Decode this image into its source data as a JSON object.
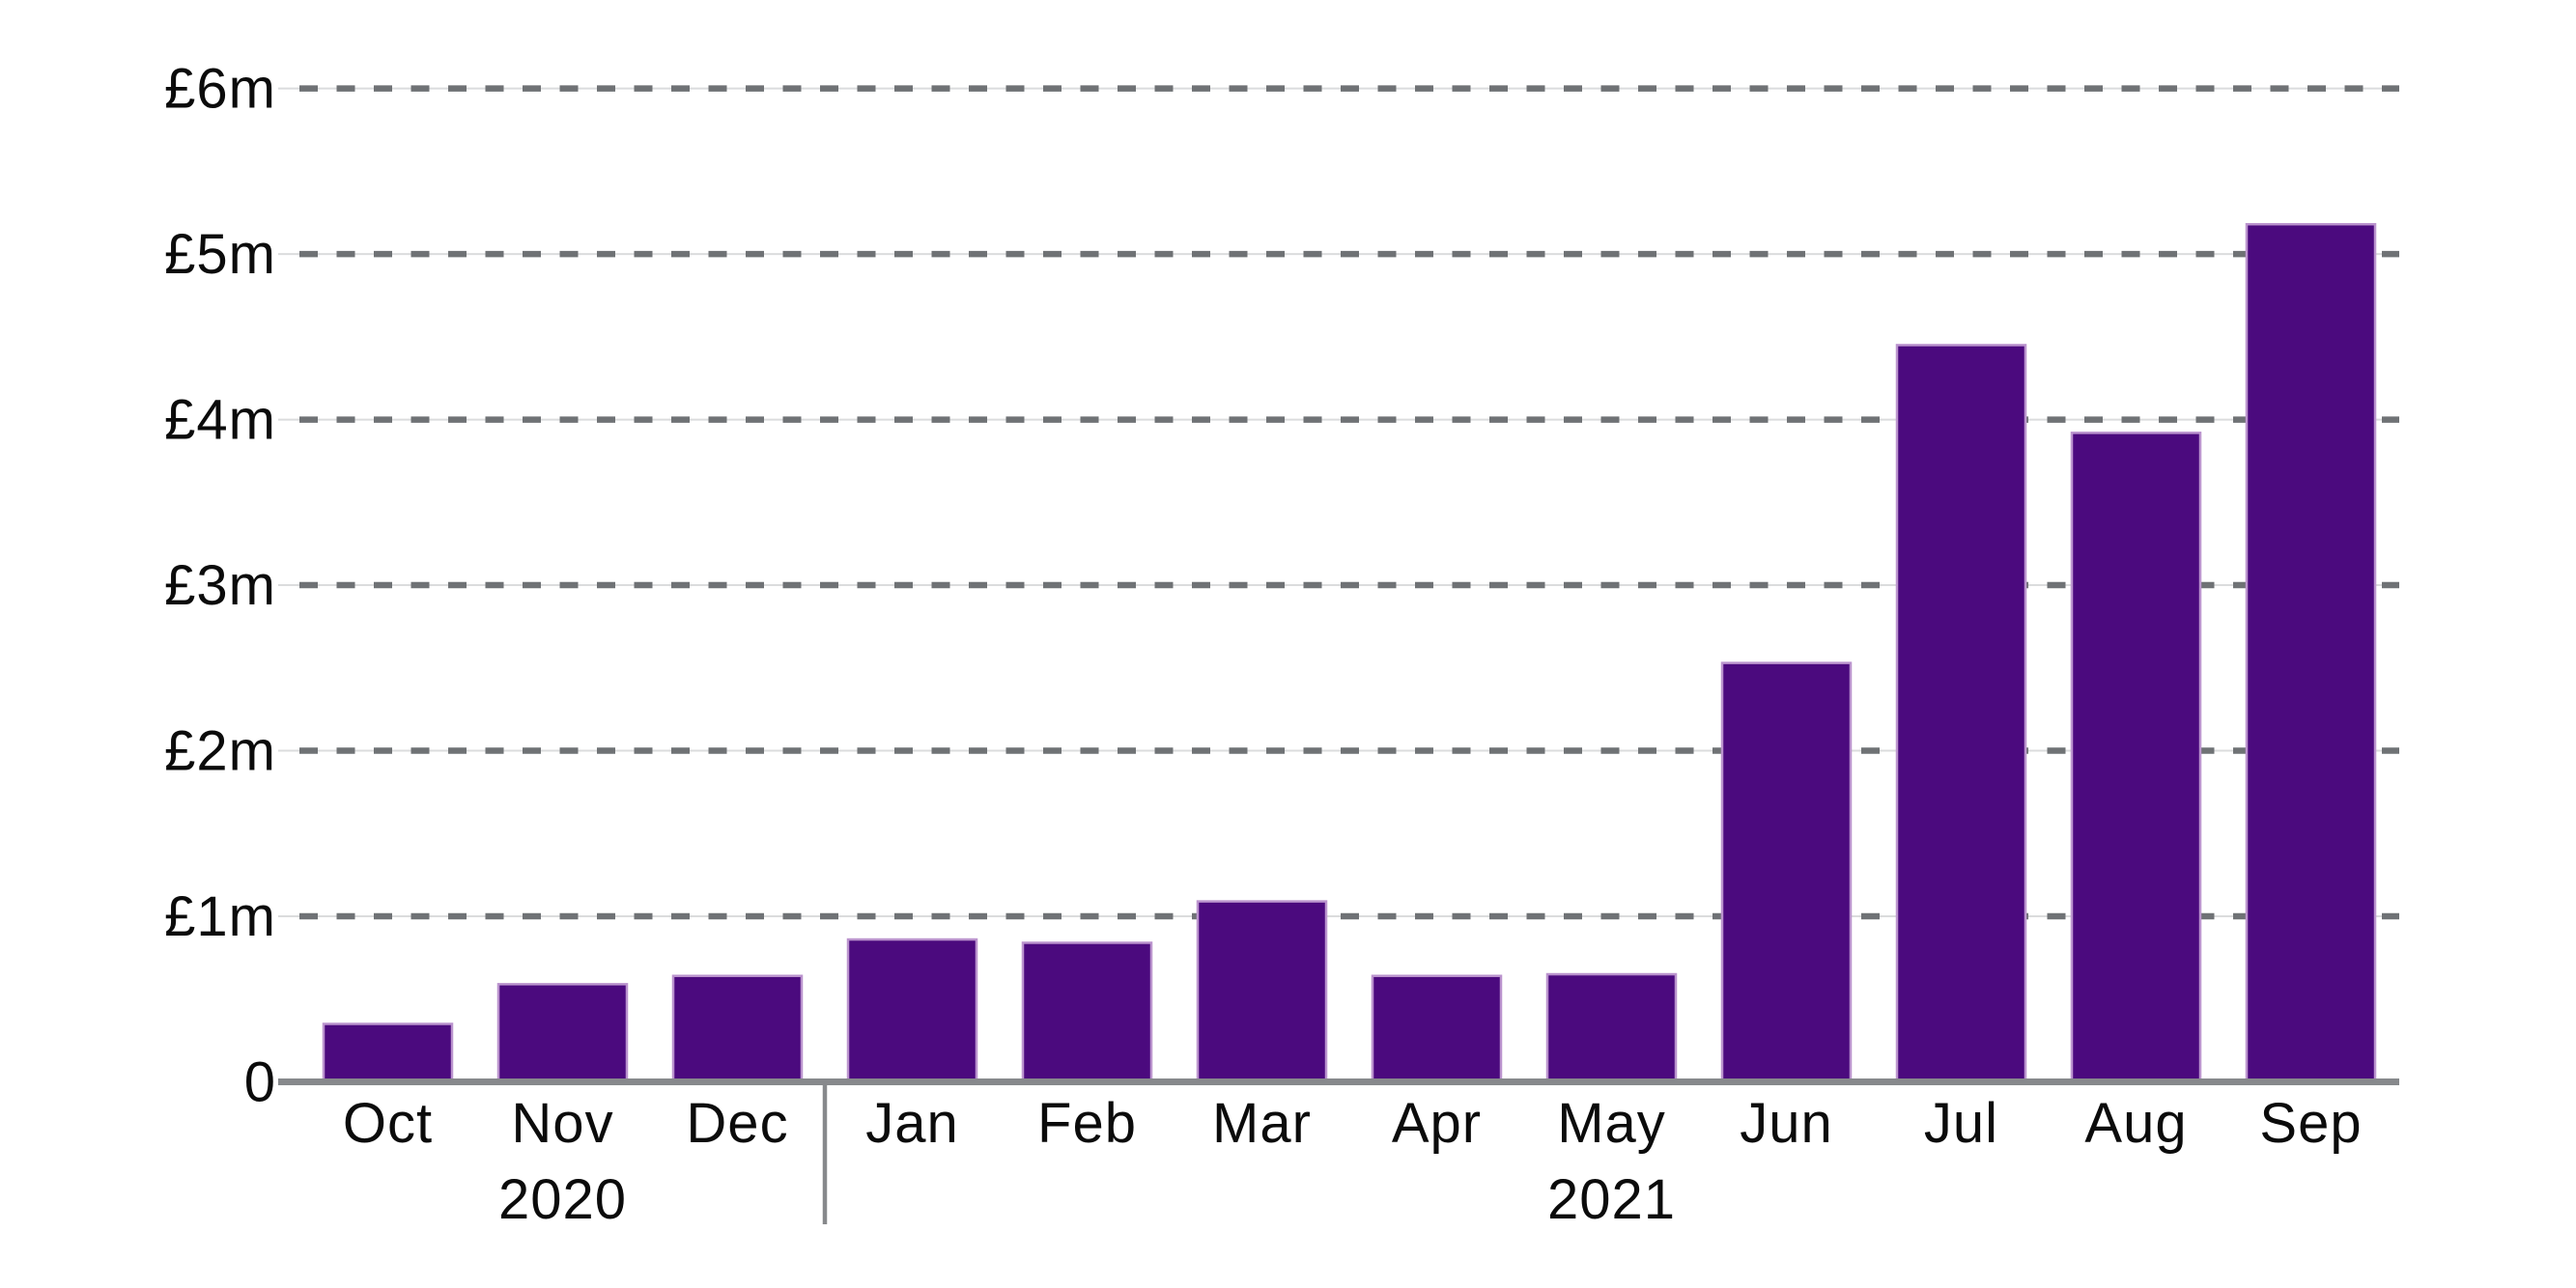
{
  "chart_data": {
    "type": "bar",
    "title": "",
    "xlabel": "",
    "ylabel": "",
    "currency": "GBP",
    "unit": "millions",
    "categories": [
      "Oct",
      "Nov",
      "Dec",
      "Jan",
      "Feb",
      "Mar",
      "Apr",
      "May",
      "Jun",
      "Jul",
      "Aug",
      "Sep"
    ],
    "values": [
      0.35,
      0.59,
      0.64,
      0.86,
      0.84,
      1.09,
      0.64,
      0.65,
      2.53,
      4.45,
      3.92,
      5.18
    ],
    "year_groups": [
      {
        "label": "2020",
        "from_index": 0,
        "to_index": 2
      },
      {
        "label": "2021",
        "from_index": 3,
        "to_index": 11
      }
    ],
    "y_axis": {
      "ticks": [
        {
          "label": "£6m",
          "value": 6
        },
        {
          "label": "£5m",
          "value": 5
        },
        {
          "label": "£4m",
          "value": 4
        },
        {
          "label": "£3m",
          "value": 3
        },
        {
          "label": "£2m",
          "value": 2
        },
        {
          "label": "£1m",
          "value": 1
        },
        {
          "label": "0",
          "value": 0
        }
      ],
      "ylim": [
        0,
        6
      ],
      "gridlines": "dashed-horizontal"
    },
    "legend": "none",
    "colors": {
      "bar_fill": "#4B0A7E",
      "bar_edge": "#BB94CE",
      "grid_dash": "#6F7275",
      "grid_underline": "#DBDCDD",
      "axis_line": "#87898C",
      "year_divider": "#87898C",
      "text": "#0B0B0B",
      "background": "#FFFFFF"
    }
  }
}
